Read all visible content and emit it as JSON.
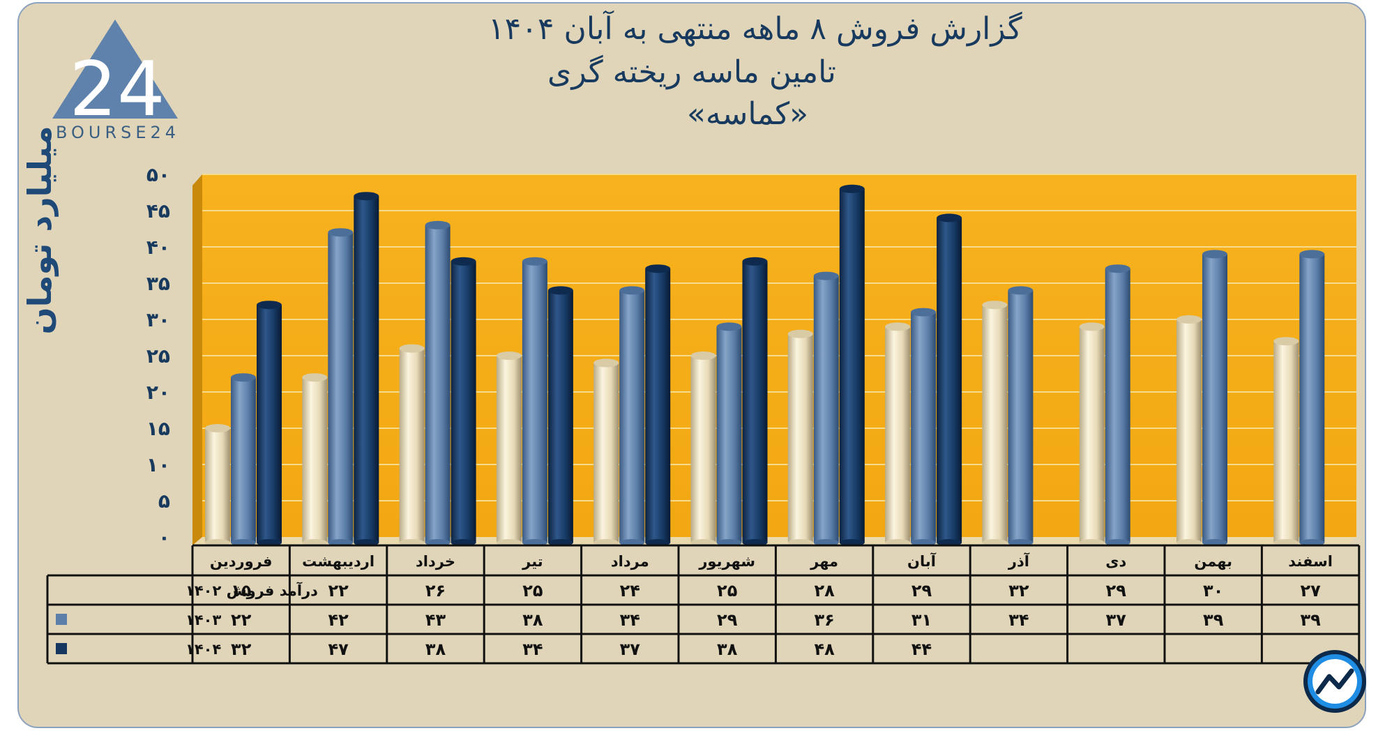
{
  "header": {
    "title_line1": "گزارش  فروش ۸ ماهه منتهی به آبان ۱۴۰۴",
    "title_line2": "تامین ماسه ریخته گری",
    "title_line3": "«کماسه»"
  },
  "logo": {
    "text": "BOURSE24",
    "mark": "24"
  },
  "colors": {
    "background": "#e0d5b9",
    "plot": "#f5b020",
    "series_1402": "#ece1c2",
    "series_1403": "#5c7faa",
    "series_1404": "#15365f",
    "text": "#173a5e"
  },
  "chart_data": {
    "type": "bar",
    "title": "گزارش  فروش ۸ ماهه منتهی به آبان ۱۴۰۴",
    "subtitle": "تامین ماسه ریخته گری «کماسه»",
    "ylabel": "میلیارد تومان",
    "xlabel": "",
    "ylim": [
      0,
      50
    ],
    "yticks": [
      0,
      5,
      10,
      15,
      20,
      25,
      30,
      35,
      40,
      45,
      50
    ],
    "ytick_labels": [
      "۰",
      "۵",
      "۱۰",
      "۱۵",
      "۲۰",
      "۲۵",
      "۳۰",
      "۳۵",
      "۴۰",
      "۴۵",
      "۵۰"
    ],
    "grid": true,
    "legend": "table-left",
    "categories": [
      "فروردین",
      "اردیبهشت",
      "خرداد",
      "تیر",
      "مرداد",
      "شهریور",
      "مهر",
      "آبان",
      "آذر",
      "دی",
      "بهمن",
      "اسفند"
    ],
    "series": [
      {
        "name": "درآمد فروش ۱۴۰۲",
        "key": "1402",
        "values": [
          15,
          22,
          26,
          25,
          24,
          25,
          28,
          29,
          32,
          29,
          30,
          27
        ],
        "labels": [
          "۱۵",
          "۲۲",
          "۲۶",
          "۲۵",
          "۲۴",
          "۲۵",
          "۲۸",
          "۲۹",
          "۳۲",
          "۲۹",
          "۳۰",
          "۲۷"
        ]
      },
      {
        "name": "۱۴۰۳",
        "key": "1403",
        "values": [
          22,
          42,
          43,
          38,
          34,
          29,
          36,
          31,
          34,
          37,
          39,
          39
        ],
        "labels": [
          "۲۲",
          "۴۲",
          "۴۳",
          "۳۸",
          "۳۴",
          "۲۹",
          "۳۶",
          "۳۱",
          "۳۴",
          "۳۷",
          "۳۹",
          "۳۹"
        ]
      },
      {
        "name": "۱۴۰۴",
        "key": "1404",
        "values": [
          32,
          47,
          38,
          34,
          37,
          38,
          48,
          44,
          null,
          null,
          null,
          null
        ],
        "labels": [
          "۳۲",
          "۴۷",
          "۳۸",
          "۳۴",
          "۳۷",
          "۳۸",
          "۴۸",
          "۴۴",
          "",
          "",
          "",
          ""
        ]
      }
    ]
  }
}
